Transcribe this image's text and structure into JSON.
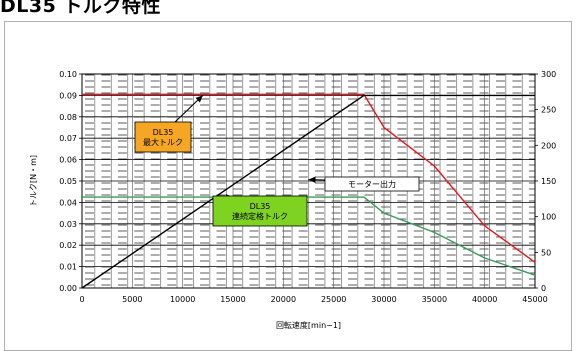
{
  "title": "DL35 トルク特性",
  "chart_data": {
    "type": "line",
    "title": "DL35 トルク特性",
    "xlabel": "回転速度[min−1]",
    "ylabel": "トルク[N・m]",
    "y2label": "",
    "xlim": [
      0,
      45000
    ],
    "ylim": [
      0,
      0.1
    ],
    "y2lim": [
      0,
      300
    ],
    "x_ticks": [
      0,
      5000,
      10000,
      15000,
      20000,
      25000,
      30000,
      35000,
      40000,
      45000
    ],
    "y_ticks": [
      0.0,
      0.01,
      0.02,
      0.03,
      0.04,
      0.05,
      0.06,
      0.07,
      0.08,
      0.09,
      0.1
    ],
    "y2_ticks": [
      0,
      50,
      100,
      150,
      200,
      250,
      300
    ],
    "grid": true,
    "series": [
      {
        "name": "DL35 最大トルク",
        "axis": "left",
        "color": "#e8141b",
        "x": [
          0,
          28000,
          30000,
          35000,
          40000,
          45000
        ],
        "y": [
          0.0905,
          0.0905,
          0.075,
          0.057,
          0.029,
          0.012
        ]
      },
      {
        "name": "DL35 連続定格トルク",
        "axis": "left",
        "color": "#3a9a5a",
        "x": [
          0,
          28000,
          30000,
          35000,
          40000,
          45000
        ],
        "y": [
          0.0425,
          0.0425,
          0.035,
          0.026,
          0.014,
          0.006
        ]
      },
      {
        "name": "モーター出力",
        "axis": "right",
        "color": "#000000",
        "x": [
          0,
          28000,
          45000
        ],
        "y": [
          0,
          270,
          270
        ]
      }
    ],
    "annotations": [
      {
        "lines": [
          "DL35",
          "最大トルク"
        ],
        "fill": "#f5a623",
        "target": "DL35 最大トルク"
      },
      {
        "lines": [
          "モーター出力"
        ],
        "fill": "#ffffff",
        "target": "モーター出力"
      },
      {
        "lines": [
          "DL35",
          "連続定格トルク"
        ],
        "fill": "#7ed321",
        "target": "DL35 連続定格トルク"
      }
    ]
  }
}
